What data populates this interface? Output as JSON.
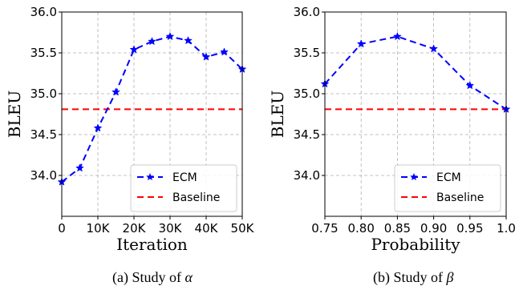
{
  "chart_data": [
    {
      "type": "line",
      "x": [
        0,
        5000,
        10000,
        15000,
        20000,
        25000,
        30000,
        35000,
        40000,
        45000,
        50000
      ],
      "series": [
        {
          "name": "ECM",
          "values": [
            33.92,
            34.09,
            34.58,
            35.02,
            35.54,
            35.64,
            35.7,
            35.65,
            35.45,
            35.51,
            35.3
          ],
          "color": "#0000ff",
          "style": "dashed",
          "marker": "star"
        },
        {
          "name": "Baseline",
          "constant": 34.81,
          "color": "#ff0000",
          "style": "dashed"
        }
      ],
      "xticks": [
        "0",
        "10K",
        "20K",
        "30K",
        "40K",
        "50K"
      ],
      "yticks": [
        "34.0",
        "34.5",
        "35.0",
        "35.5",
        "36.0"
      ],
      "xlabel": "Iteration",
      "ylabel": "BLEU",
      "xlim": [
        0,
        50000
      ],
      "ylim": [
        33.5,
        36.0
      ],
      "grid": true,
      "legend": "lower-right",
      "caption_text": "(a) Study of ",
      "caption_symbol": "α"
    },
    {
      "type": "line",
      "x": [
        0.75,
        0.8,
        0.85,
        0.9,
        0.95,
        1.0
      ],
      "series": [
        {
          "name": "ECM",
          "values": [
            35.12,
            35.61,
            35.7,
            35.55,
            35.1,
            34.81
          ],
          "color": "#0000ff",
          "style": "dashed",
          "marker": "star"
        },
        {
          "name": "Baseline",
          "constant": 34.81,
          "color": "#ff0000",
          "style": "dashed"
        }
      ],
      "xticks": [
        "0.75",
        "0.80",
        "0.85",
        "0.90",
        "0.95",
        "1.0"
      ],
      "yticks": [
        "34.0",
        "34.5",
        "35.0",
        "35.5",
        "36.0"
      ],
      "xlabel": "Probability",
      "ylabel": "BLEU",
      "xlim": [
        0.75,
        1.0
      ],
      "ylim": [
        33.5,
        36.0
      ],
      "grid": true,
      "legend": "lower-right",
      "caption_text": "(b) Study of ",
      "caption_symbol": "β"
    }
  ]
}
